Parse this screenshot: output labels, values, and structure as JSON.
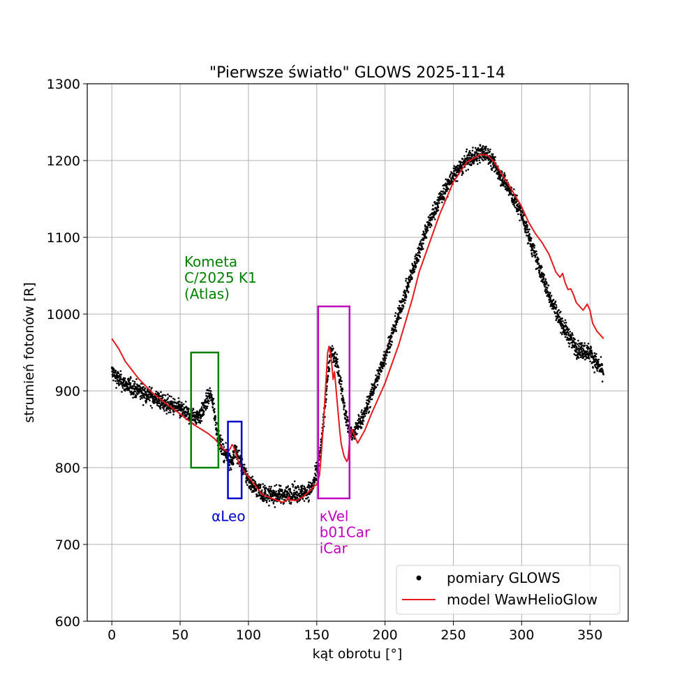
{
  "chart_data": {
    "type": "line",
    "title": "\"Pierwsze światło\" GLOWS 2025-11-14",
    "xlabel": "kąt obrotu [°]",
    "ylabel": "strumień fotonów [R]",
    "xlim": [
      -18,
      378
    ],
    "ylim": [
      600,
      1300
    ],
    "xticks": [
      0,
      50,
      100,
      150,
      200,
      250,
      300,
      350
    ],
    "yticks": [
      600,
      700,
      800,
      900,
      1000,
      1100,
      1200,
      1300
    ],
    "grid": true,
    "legend": {
      "placement": "lower-right",
      "entries": [
        {
          "label": "pomiary GLOWS",
          "marker": "dot",
          "color": "#000000"
        },
        {
          "label": "model WawHelioGlow",
          "marker": "line",
          "color": "#e41a1c"
        }
      ]
    },
    "series": [
      {
        "name": "pomiary GLOWS",
        "kind": "scatter",
        "color": "#000000",
        "x": [
          0,
          5,
          10,
          20,
          30,
          40,
          50,
          55,
          60,
          65,
          68,
          70,
          72,
          74,
          76,
          78,
          80,
          83,
          86,
          88,
          90,
          93,
          96,
          100,
          105,
          110,
          115,
          120,
          125,
          130,
          135,
          140,
          145,
          148,
          150,
          152,
          154,
          156,
          158,
          160,
          162,
          164,
          166,
          168,
          170,
          172,
          174,
          176,
          178,
          180,
          185,
          190,
          200,
          210,
          220,
          230,
          240,
          250,
          260,
          270,
          275,
          280,
          290,
          300,
          310,
          320,
          330,
          340,
          350,
          355,
          360
        ],
        "y": [
          925,
          915,
          908,
          900,
          892,
          883,
          876,
          870,
          866,
          868,
          880,
          890,
          895,
          885,
          860,
          838,
          828,
          818,
          810,
          808,
          822,
          812,
          798,
          784,
          774,
          767,
          764,
          764,
          765,
          766,
          766,
          767,
          770,
          780,
          795,
          812,
          842,
          880,
          920,
          950,
          948,
          940,
          925,
          905,
          880,
          860,
          848,
          842,
          845,
          855,
          870,
          895,
          945,
          1000,
          1055,
          1110,
          1150,
          1180,
          1200,
          1210,
          1208,
          1195,
          1165,
          1130,
          1075,
          1025,
          985,
          955,
          950,
          935,
          925
        ],
        "noise": 8
      },
      {
        "name": "model WawHelioGlow",
        "kind": "line",
        "color": "#e41a1c",
        "x": [
          0,
          5,
          10,
          20,
          30,
          40,
          50,
          60,
          70,
          75,
          78,
          80,
          82,
          85,
          87,
          88,
          89,
          91,
          93,
          95,
          100,
          110,
          120,
          125,
          128,
          129,
          130,
          135,
          140,
          145,
          148,
          150,
          152,
          153,
          155,
          157,
          158,
          159,
          160,
          161,
          162,
          163,
          164,
          165,
          166,
          167,
          168,
          170,
          172,
          173,
          174,
          176,
          178,
          180,
          185,
          190,
          200,
          210,
          220,
          225,
          228,
          230,
          235,
          240,
          250,
          260,
          270,
          275,
          280,
          290,
          300,
          305,
          310,
          315,
          320,
          325,
          328,
          330,
          332,
          334,
          336,
          338,
          340,
          345,
          348,
          350,
          352,
          355,
          360
        ],
        "y": [
          968,
          955,
          938,
          915,
          897,
          883,
          870,
          856,
          845,
          838,
          832,
          827,
          824,
          820,
          826,
          830,
          828,
          817,
          806,
          800,
          788,
          765,
          758,
          755,
          757,
          762,
          758,
          757,
          762,
          770,
          776,
          778,
          790,
          810,
          860,
          920,
          950,
          958,
          950,
          935,
          915,
          925,
          905,
          885,
          865,
          845,
          830,
          815,
          808,
          812,
          835,
          850,
          840,
          832,
          848,
          870,
          910,
          960,
          1020,
          1055,
          1070,
          1080,
          1105,
          1130,
          1172,
          1198,
          1208,
          1207,
          1198,
          1170,
          1140,
          1120,
          1105,
          1093,
          1078,
          1055,
          1048,
          1053,
          1040,
          1032,
          1033,
          1025,
          1015,
          1005,
          1013,
          1005,
          988,
          978,
          968
        ]
      }
    ],
    "annotations": [
      {
        "id": "comet",
        "lines": [
          "Kometa",
          "C/2025 K1",
          "(Atlas)"
        ],
        "color": "#008000",
        "box": {
          "x0": 58,
          "x1": 78,
          "y0": 800,
          "y1": 950
        },
        "label_anchor": {
          "x": 53,
          "y": 1000
        }
      },
      {
        "id": "alpha-leo",
        "lines": [
          "αLeo"
        ],
        "color": "#0000cc",
        "box": {
          "x0": 85,
          "x1": 95,
          "y0": 760,
          "y1": 860
        },
        "label_anchor": {
          "x": 73,
          "y": 725
        }
      },
      {
        "id": "kappa-vel",
        "lines": [
          "κVel",
          "b01Car",
          "iCar"
        ],
        "color": "#c000c0",
        "box": {
          "x0": 151,
          "x1": 174,
          "y0": 760,
          "y1": 1010
        },
        "label_anchor": {
          "x": 152,
          "y": 725
        }
      }
    ]
  }
}
